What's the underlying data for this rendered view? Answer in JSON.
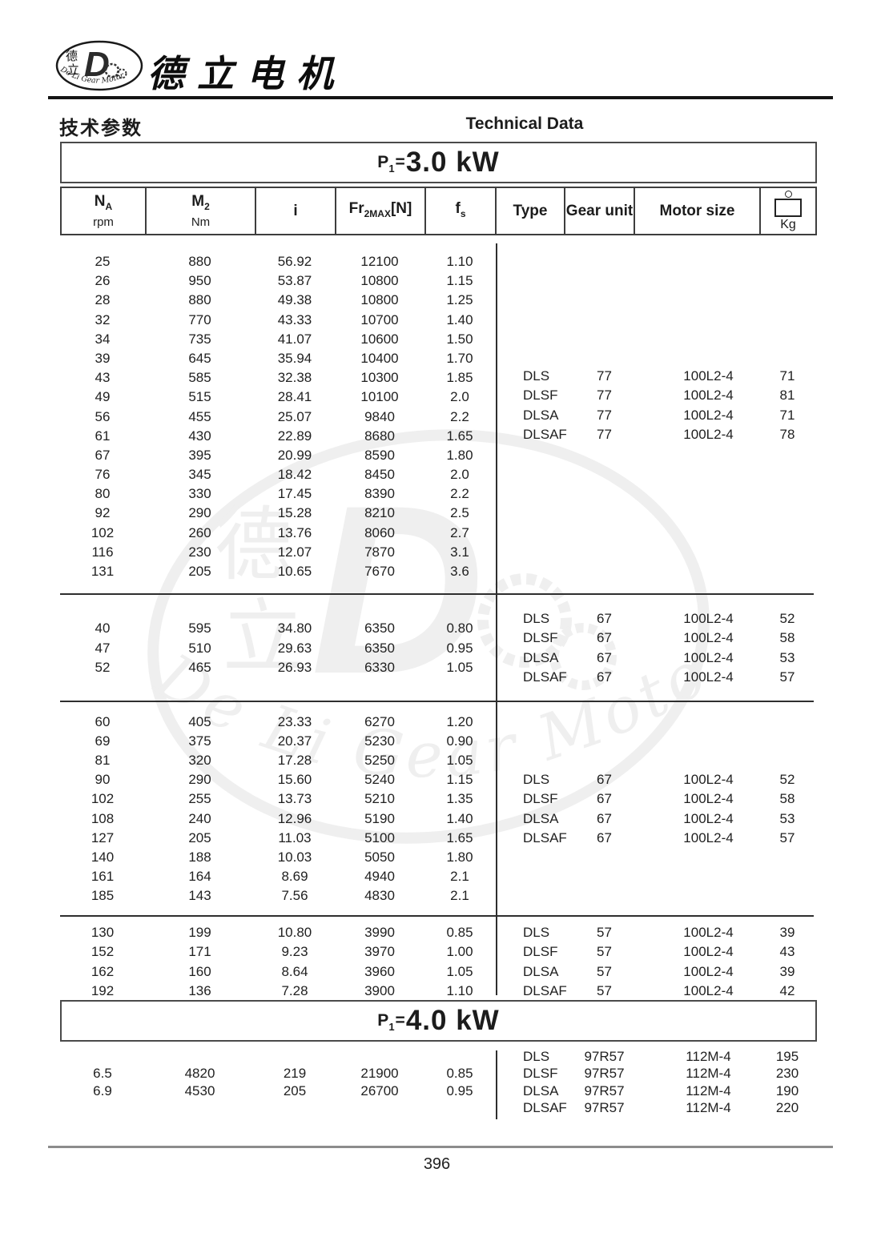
{
  "header": {
    "logo_cn1": "德",
    "logo_cn2": "立",
    "logo_d": "D",
    "logo_en": "De Li Gear Motor",
    "brand": "德立电机",
    "section_cn": "技术参数",
    "section_en": "Technical Data"
  },
  "banner_3kw": {
    "p": "P",
    "sub": "1",
    "eq": "=",
    "value": "3.0 kW"
  },
  "banner_4kw": {
    "p": "P",
    "sub": "1",
    "eq": "=",
    "value": "4.0 kW"
  },
  "table": {
    "columns": [
      {
        "main": "N",
        "sub": "A",
        "unit": "rpm"
      },
      {
        "main": "M",
        "sub": "2",
        "unit": "Nm"
      },
      {
        "main": "i"
      },
      {
        "main": "Fr",
        "sub": "2MAX",
        "suffix": "[N]"
      },
      {
        "main": "f",
        "sub": "s"
      },
      {
        "label": "Type"
      },
      {
        "label": "Gear unit"
      },
      {
        "label": "Motor size"
      },
      {
        "icon": "weight-icon",
        "unit": "Kg"
      }
    ],
    "blocks_3kw": [
      {
        "left": [
          [
            "25",
            "880",
            "56.92",
            "12100",
            "1.10"
          ],
          [
            "26",
            "950",
            "53.87",
            "10800",
            "1.15"
          ],
          [
            "28",
            "880",
            "49.38",
            "10800",
            "1.25"
          ],
          [
            "32",
            "770",
            "43.33",
            "10700",
            "1.40"
          ],
          [
            "34",
            "735",
            "41.07",
            "10600",
            "1.50"
          ],
          [
            "39",
            "645",
            "35.94",
            "10400",
            "1.70"
          ],
          [
            "43",
            "585",
            "32.38",
            "10300",
            "1.85"
          ],
          [
            "49",
            "515",
            "28.41",
            "10100",
            "2.0"
          ],
          [
            "56",
            "455",
            "25.07",
            "9840",
            "2.2"
          ],
          [
            "61",
            "430",
            "22.89",
            "8680",
            "1.65"
          ],
          [
            "67",
            "395",
            "20.99",
            "8590",
            "1.80"
          ],
          [
            "76",
            "345",
            "18.42",
            "8450",
            "2.0"
          ],
          [
            "80",
            "330",
            "17.45",
            "8390",
            "2.2"
          ],
          [
            "92",
            "290",
            "15.28",
            "8210",
            "2.5"
          ],
          [
            "102",
            "260",
            "13.76",
            "8060",
            "2.7"
          ],
          [
            "116",
            "230",
            "12.07",
            "7870",
            "3.1"
          ],
          [
            "131",
            "205",
            "10.65",
            "7670",
            "3.6"
          ]
        ],
        "right": [
          [
            "DLS",
            "77",
            "100L2-4",
            "71"
          ],
          [
            "DLSF",
            "77",
            "100L2-4",
            "81"
          ],
          [
            "DLSA",
            "77",
            "100L2-4",
            "71"
          ],
          [
            "DLSAF",
            "77",
            "100L2-4",
            "78"
          ]
        ]
      },
      {
        "left": [
          [
            "40",
            "595",
            "34.80",
            "6350",
            "0.80"
          ],
          [
            "47",
            "510",
            "29.63",
            "6350",
            "0.95"
          ],
          [
            "52",
            "465",
            "26.93",
            "6330",
            "1.05"
          ]
        ],
        "right": [
          [
            "DLS",
            "67",
            "100L2-4",
            "52"
          ],
          [
            "DLSF",
            "67",
            "100L2-4",
            "58"
          ],
          [
            "DLSA",
            "67",
            "100L2-4",
            "53"
          ],
          [
            "DLSAF",
            "67",
            "100L2-4",
            "57"
          ]
        ]
      },
      {
        "left": [
          [
            "60",
            "405",
            "23.33",
            "6270",
            "1.20"
          ],
          [
            "69",
            "375",
            "20.37",
            "5230",
            "0.90"
          ],
          [
            "81",
            "320",
            "17.28",
            "5250",
            "1.05"
          ],
          [
            "90",
            "290",
            "15.60",
            "5240",
            "1.15"
          ],
          [
            "102",
            "255",
            "13.73",
            "5210",
            "1.35"
          ],
          [
            "108",
            "240",
            "12.96",
            "5190",
            "1.40"
          ],
          [
            "127",
            "205",
            "11.03",
            "5100",
            "1.65"
          ],
          [
            "140",
            "188",
            "10.03",
            "5050",
            "1.80"
          ],
          [
            "161",
            "164",
            "8.69",
            "4940",
            "2.1"
          ],
          [
            "185",
            "143",
            "7.56",
            "4830",
            "2.1"
          ]
        ],
        "right": [
          [
            "DLS",
            "67",
            "100L2-4",
            "52"
          ],
          [
            "DLSF",
            "67",
            "100L2-4",
            "58"
          ],
          [
            "DLSA",
            "67",
            "100L2-4",
            "53"
          ],
          [
            "DLSAF",
            "67",
            "100L2-4",
            "57"
          ]
        ]
      },
      {
        "left": [
          [
            "130",
            "199",
            "10.80",
            "3990",
            "0.85"
          ],
          [
            "152",
            "171",
            "9.23",
            "3970",
            "1.00"
          ],
          [
            "162",
            "160",
            "8.64",
            "3960",
            "1.05"
          ],
          [
            "192",
            "136",
            "7.28",
            "3900",
            "1.10"
          ]
        ],
        "right": [
          [
            "DLS",
            "57",
            "100L2-4",
            "39"
          ],
          [
            "DLSF",
            "57",
            "100L2-4",
            "43"
          ],
          [
            "DLSA",
            "57",
            "100L2-4",
            "39"
          ],
          [
            "DLSAF",
            "57",
            "100L2-4",
            "42"
          ]
        ]
      }
    ],
    "blocks_4kw": [
      {
        "left": [
          [
            "6.5",
            "4820",
            "219",
            "21900",
            "0.85"
          ],
          [
            "6.9",
            "4530",
            "205",
            "26700",
            "0.95"
          ]
        ],
        "right": [
          [
            "DLS",
            "97R57",
            "112M-4",
            "195"
          ],
          [
            "DLSF",
            "97R57",
            "112M-4",
            "230"
          ],
          [
            "DLSA",
            "97R57",
            "112M-4",
            "190"
          ],
          [
            "DLSAF",
            "97R57",
            "112M-4",
            "220"
          ]
        ]
      }
    ]
  },
  "watermark": {
    "cn1": "德",
    "cn2": "立",
    "d": "D",
    "text": "De Li Gear Motor"
  },
  "footer": {
    "page_number": "396"
  }
}
